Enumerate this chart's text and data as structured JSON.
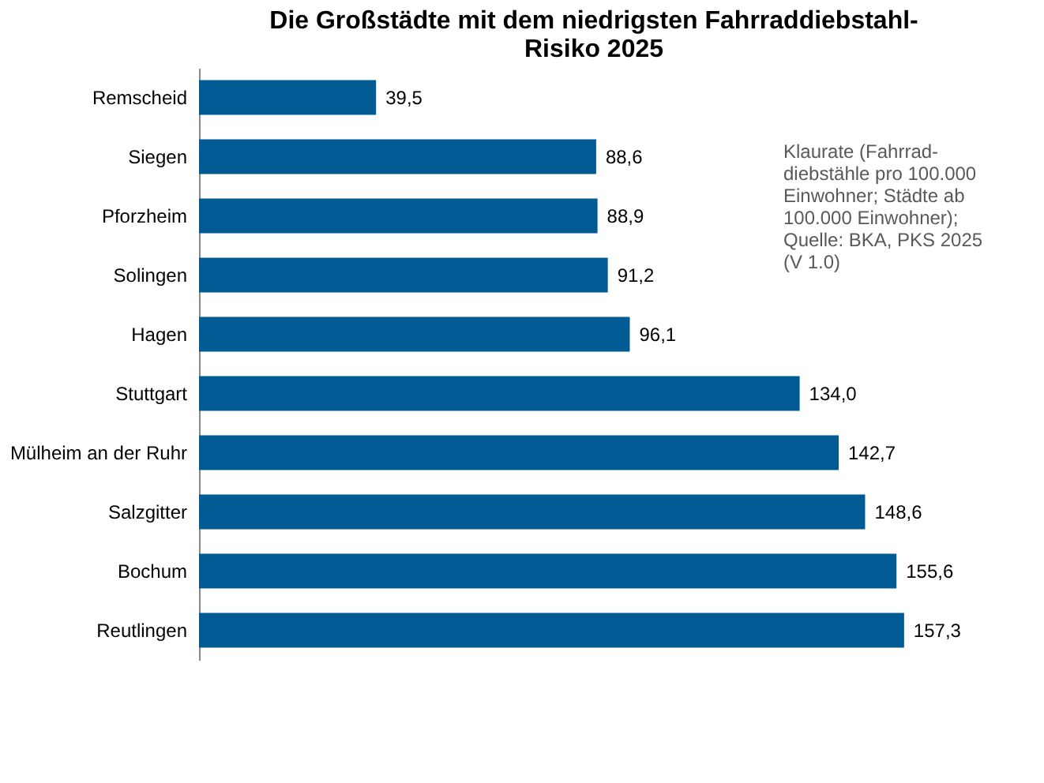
{
  "chart_data": {
    "type": "bar",
    "orientation": "horizontal",
    "title": "Die Großstädte mit dem niedrigsten Fahrraddiebstahl-\nRisiko 2025",
    "categories": [
      "Remscheid",
      "Siegen",
      "Pforzheim",
      "Solingen",
      "Hagen",
      "Stuttgart",
      "Mülheim an der Ruhr",
      "Salzgitter",
      "Bochum",
      "Reutlingen"
    ],
    "values": [
      39.5,
      88.6,
      88.9,
      91.2,
      96.1,
      134.0,
      142.7,
      148.6,
      155.6,
      157.3
    ],
    "value_labels": [
      "39,5",
      "88,6",
      "88,9",
      "91,2",
      "96,1",
      "134,0",
      "142,7",
      "148,6",
      "155,6",
      "157,3"
    ],
    "color": "#005b94",
    "annotations": [
      "Klaurate (Fahrrad-\ndiebstähle pro 100.000\nEinwohner; Städte ab\n100.000 Einwohner);\nQuelle: BKA, PKS 2025\n(V 1.0)"
    ],
    "legend": false
  }
}
